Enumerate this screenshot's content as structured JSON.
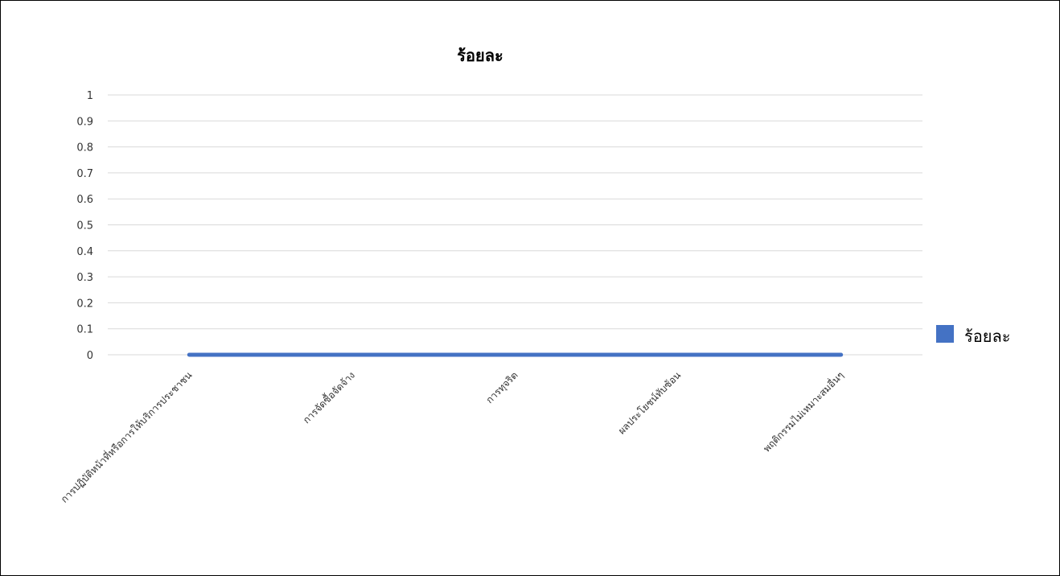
{
  "chart_data": {
    "type": "line",
    "title": "ร้อยละ",
    "xlabel": "",
    "ylabel": "",
    "categories": [
      "การปฏิบัติหน้าที่หรือการให้บริการประชาชน",
      "การจัดซื้อจัดจ้าง",
      "การทุจริต",
      "ผลประโยชน์ทับซ้อน",
      "พฤติกรรมไม่เหมาะสมอื่นๆ"
    ],
    "series": [
      {
        "name": "ร้อยละ",
        "values": [
          0,
          0,
          0,
          0,
          0
        ],
        "color": "#4472C4"
      }
    ],
    "ylim": [
      0,
      1
    ],
    "yticks": [
      "0",
      "0.1",
      "0.2",
      "0.3",
      "0.4",
      "0.5",
      "0.6",
      "0.7",
      "0.8",
      "0.9",
      "1"
    ],
    "grid": true,
    "legend_position": "right",
    "colors": {
      "gridline": "#D9D9D9",
      "series": "#4472C4"
    }
  }
}
